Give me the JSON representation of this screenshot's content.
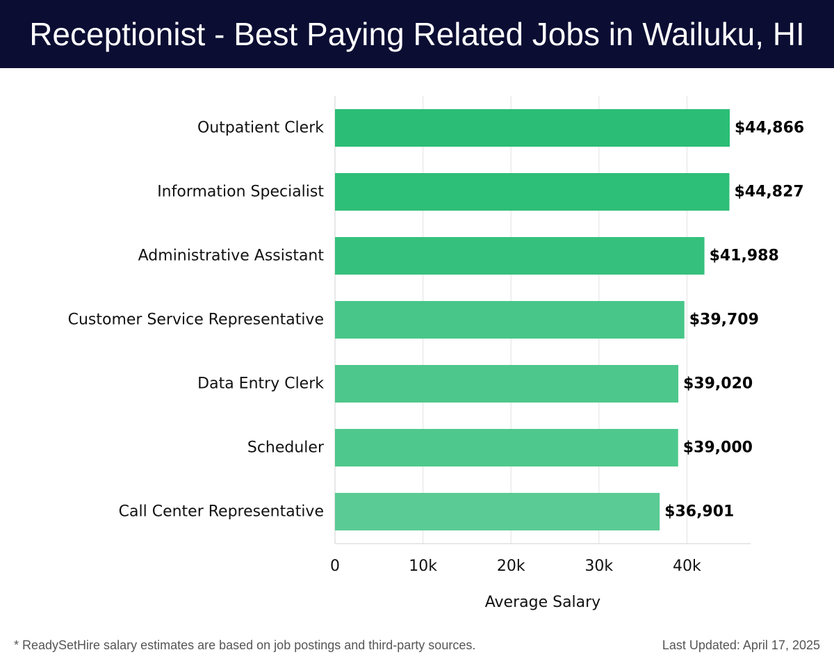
{
  "header": {
    "title": "Receptionist - Best Paying Related Jobs in Wailuku, HI"
  },
  "chart_data": {
    "type": "bar",
    "orientation": "horizontal",
    "categories": [
      "Outpatient Clerk",
      "Information Specialist",
      "Administrative Assistant",
      "Customer Service Representative",
      "Data Entry Clerk",
      "Scheduler",
      "Call Center Representative"
    ],
    "values": [
      44866,
      44827,
      41988,
      39709,
      39020,
      39000,
      36901
    ],
    "value_labels": [
      "$44,866",
      "$44,827",
      "$41,988",
      "$39,709",
      "$39,020",
      "$39,000",
      "$36,901"
    ],
    "xlabel": "Average Salary",
    "xlim": [
      0,
      47000
    ],
    "xticks": [
      0,
      10000,
      20000,
      30000,
      40000
    ],
    "xtick_labels": [
      "0",
      "10k",
      "20k",
      "30k",
      "40k"
    ],
    "grid": true,
    "bar_colors": [
      "#2bbd76",
      "#2dbe77",
      "#35c17d",
      "#48c689",
      "#4dc78c",
      "#4fc88d",
      "#5acb95"
    ]
  },
  "footer": {
    "note": "* ReadySetHire salary estimates are based on job postings and third-party sources.",
    "updated": "Last Updated: April 17, 2025"
  }
}
